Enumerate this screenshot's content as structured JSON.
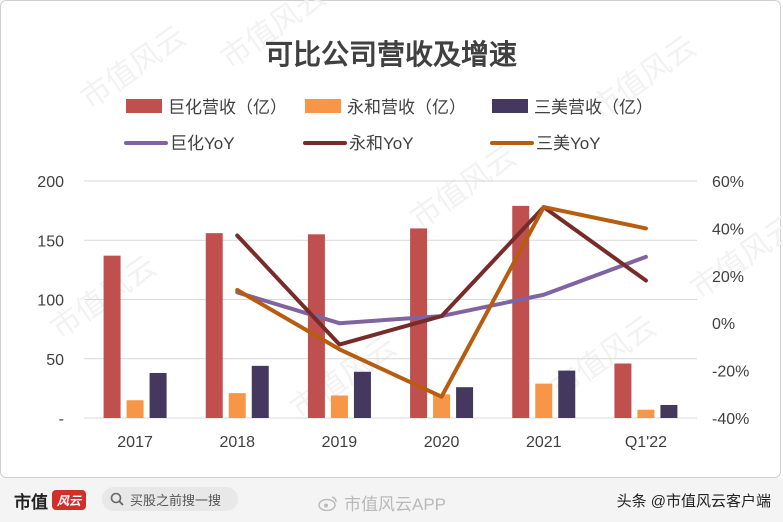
{
  "chart_data": {
    "type": "bar+line",
    "title": "可比公司营收及增速",
    "categories": [
      "2017",
      "2018",
      "2019",
      "2020",
      "2021",
      "Q1'22"
    ],
    "bar_series": [
      {
        "name": "巨化营收（亿）",
        "color": "#c0504d",
        "values": [
          137,
          156,
          155,
          160,
          179,
          46
        ]
      },
      {
        "name": "永和营收（亿）",
        "color": "#f79646",
        "values": [
          15,
          21,
          19,
          20,
          29,
          7
        ]
      },
      {
        "name": "三美营收（亿）",
        "color": "#44385e",
        "values": [
          38,
          44,
          39,
          26,
          40,
          11
        ]
      }
    ],
    "line_series": [
      {
        "name": "巨化YoY",
        "color": "#8064a2",
        "values": [
          null,
          13,
          0,
          3,
          12,
          28
        ]
      },
      {
        "name": "永和YoY",
        "color": "#772c2a",
        "values": [
          null,
          37,
          -9,
          3,
          49,
          18
        ]
      },
      {
        "name": "三美YoY",
        "color": "#b85c10",
        "values": [
          null,
          14,
          -11,
          -31,
          49,
          40
        ]
      }
    ],
    "y_left": {
      "ylim": [
        0,
        200
      ],
      "ticks": [
        "-",
        "50",
        "100",
        "150",
        "200"
      ]
    },
    "y_right": {
      "ylim": [
        -40,
        60
      ],
      "ticks": [
        "-40%",
        "-20%",
        "0%",
        "20%",
        "40%",
        "60%"
      ]
    },
    "grid": true,
    "legend_placement": "top"
  },
  "watermark_text": "市值风云",
  "footer": {
    "brand": "市值",
    "brand_logo": "风云",
    "search_placeholder": "买股之前搜一搜",
    "weibo_label": "市值风云APP",
    "author": "头条 @市值风云客户端"
  }
}
